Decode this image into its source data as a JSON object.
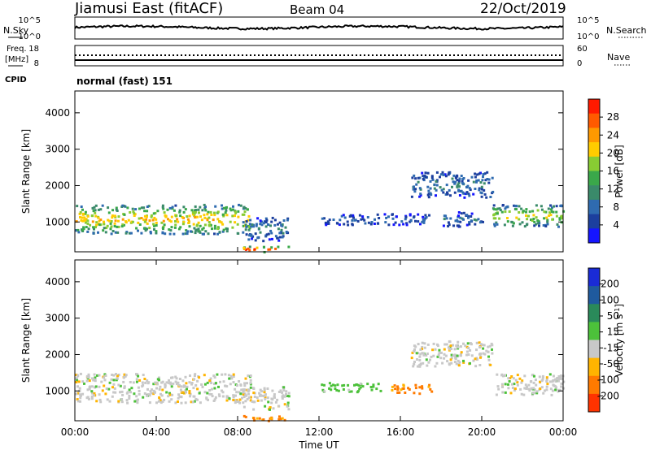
{
  "header": {
    "station": "Jiamusi East (fitACF)",
    "beam": "Beam 04",
    "date": "22/Oct/2019"
  },
  "noise_panel": {
    "left_label": "N.Sky",
    "right_label": "N.Search",
    "left_ticks": [
      "10^5",
      "10^0"
    ],
    "right_ticks": [
      "10^5",
      "10^0"
    ]
  },
  "freq_panel": {
    "left_label_line1": "Freq.",
    "left_label_line2": "[MHz]",
    "right_label": "Nave",
    "left_ticks": [
      "18",
      "8"
    ],
    "right_ticks": [
      "60",
      "0"
    ],
    "cpid_label": "CPID",
    "cpid_text": "normal (fast) 151"
  },
  "power_panel": {
    "ylabel": "Slant Range [km]",
    "yticks": [
      "4000",
      "3000",
      "2000",
      "1000"
    ],
    "colorbar_label": "Power [dB]",
    "colorbar_ticks": [
      "28",
      "24",
      "20",
      "16",
      "12",
      "8",
      "4"
    ],
    "colors": [
      "#1515ff",
      "#1c3f9e",
      "#2f6bb0",
      "#3a8a6a",
      "#3aa84a",
      "#88cc33",
      "#ffcc00",
      "#ff9900",
      "#ff5a00",
      "#ff1a00"
    ]
  },
  "velocity_panel": {
    "ylabel": "Slant Range [km]",
    "yticks": [
      "4000",
      "3000",
      "2000",
      "1000"
    ],
    "colorbar_label": "Velocity [m s^-1]",
    "colorbar_ticks": [
      "200",
      "100",
      "50",
      "15",
      "-15",
      "-50",
      "-100",
      "-200"
    ],
    "colors": [
      "#1a2bd6",
      "#1f5a9e",
      "#2a8a5a",
      "#4cc13a",
      "#c8c8c8",
      "#ffb400",
      "#ff7a00",
      "#ff3300"
    ]
  },
  "x_axis": {
    "ticks": [
      "00:00",
      "04:00",
      "08:00",
      "12:00",
      "16:00",
      "20:00",
      "00:00"
    ],
    "xlabel": "Time UT"
  },
  "chart_data": [
    {
      "type": "heatmap",
      "name": "power",
      "x_range_hours": [
        0,
        24
      ],
      "y_range_km": [
        180,
        4600
      ],
      "colorbar_range_db": [
        0,
        32
      ],
      "regions": [
        {
          "t0": 0.0,
          "t1": 8.6,
          "r0": 700,
          "r1": 1500,
          "level_db": 18
        },
        {
          "t0": 8.2,
          "t1": 10.5,
          "r0": 500,
          "r1": 1150,
          "level_db": 8
        },
        {
          "t0": 8.2,
          "t1": 10.5,
          "r0": 200,
          "r1": 350,
          "level_db": 24
        },
        {
          "t0": 12.0,
          "t1": 17.5,
          "r0": 950,
          "r1": 1250,
          "level_db": 6
        },
        {
          "t0": 16.5,
          "t1": 20.5,
          "r0": 1700,
          "r1": 2400,
          "level_db": 8
        },
        {
          "t0": 18.0,
          "t1": 20.0,
          "r0": 900,
          "r1": 1300,
          "level_db": 7
        },
        {
          "t0": 20.5,
          "t1": 24.0,
          "r0": 900,
          "r1": 1500,
          "level_db": 16
        }
      ]
    },
    {
      "type": "heatmap",
      "name": "velocity",
      "x_range_hours": [
        0,
        24
      ],
      "y_range_km": [
        180,
        4600
      ],
      "colorbar_range_ms": [
        -250,
        250
      ],
      "regions": [
        {
          "t0": 0.0,
          "t1": 8.6,
          "r0": 700,
          "r1": 1500,
          "velocity": 0
        },
        {
          "t0": 8.2,
          "t1": 10.5,
          "r0": 500,
          "r1": 1150,
          "velocity": 0
        },
        {
          "t0": 8.2,
          "t1": 10.5,
          "r0": 200,
          "r1": 350,
          "velocity": -60
        },
        {
          "t0": 12.0,
          "t1": 15.0,
          "r0": 1000,
          "r1": 1250,
          "velocity": 30
        },
        {
          "t0": 15.5,
          "t1": 17.5,
          "r0": 950,
          "r1": 1200,
          "velocity": -60
        },
        {
          "t0": 16.5,
          "t1": 20.5,
          "r0": 1700,
          "r1": 2400,
          "velocity": 0
        },
        {
          "t0": 20.5,
          "t1": 24.0,
          "r0": 900,
          "r1": 1500,
          "velocity": 0
        }
      ]
    }
  ]
}
